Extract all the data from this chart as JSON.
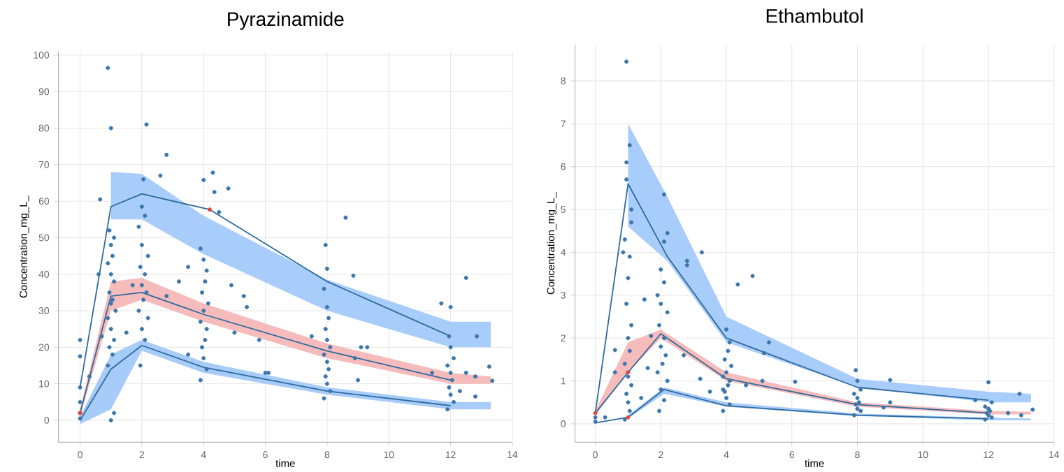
{
  "chart_data": [
    {
      "type": "scatter",
      "title": "Pyrazinamide",
      "xlabel": "time",
      "ylabel": "Concentration_mg_L_",
      "xlim": [
        -0.7,
        14
      ],
      "ylim": [
        -6,
        101
      ],
      "xticks": [
        0,
        2,
        4,
        6,
        8,
        10,
        12,
        14
      ],
      "yticks": [
        0,
        10,
        20,
        30,
        40,
        50,
        60,
        70,
        80,
        90,
        100
      ],
      "grid": true,
      "marker": "circle",
      "series": [
        {
          "type": "area",
          "color": "#a9cdfb",
          "x": [
            1,
            2,
            4,
            8,
            12,
            13.3
          ],
          "values": [
            null,
            null,
            null,
            null,
            null,
            null
          ],
          "lower": [
            55,
            55,
            45.5,
            30,
            20,
            20
          ],
          "upper": [
            68,
            67.5,
            56,
            38.5,
            27,
            27
          ]
        },
        {
          "type": "area",
          "color": "#f6bcbc",
          "x": [
            0,
            1,
            2,
            4,
            8,
            12,
            13.3
          ],
          "values": [
            null,
            null,
            null,
            null,
            null,
            null,
            null
          ],
          "lower": [
            1,
            30,
            33,
            27,
            17,
            10,
            10
          ],
          "upper": [
            3,
            38,
            39,
            32,
            21,
            13,
            12
          ]
        },
        {
          "type": "area",
          "color": "#a8ccfa",
          "x": [
            0,
            1,
            2,
            4,
            8,
            12,
            13.3
          ],
          "values": [
            null,
            null,
            null,
            null,
            null,
            null,
            null
          ],
          "lower": [
            -1,
            3,
            19,
            13,
            7,
            3,
            3
          ],
          "upper": [
            1,
            18,
            22,
            16,
            9,
            5,
            5
          ]
        },
        {
          "color": "#3b76ab",
          "x": [
            0.9,
            1,
            2.15,
            2.8,
            2.6,
            2.05,
            4,
            4.3,
            4.35,
            4.8,
            4.5,
            0.65,
            0.95,
            8.6,
            7.95,
            8,
            8.85,
            12.5,
            11.7,
            12,
            12.85,
            13.25,
            13.35,
            12.8,
            1,
            1.1,
            0,
            0,
            0,
            0,
            0,
            0,
            0.9,
            1.05,
            0.95,
            1.1,
            1.0,
            0.9,
            1.15,
            1.0,
            1.05,
            0.95,
            1.1,
            1.0,
            0.9,
            1.05,
            1.0,
            1.1,
            1.95,
            2.1,
            2.0,
            2.2,
            1.9,
            2.05,
            2.15,
            2.0,
            2.1,
            1.95,
            2.2,
            2.0,
            1.9,
            2.1,
            2.0,
            3.9,
            4.1,
            4.0,
            3.95,
            4.05,
            4.1,
            3.9,
            4.0,
            4.15,
            3.95,
            4.05,
            4.1,
            4.0,
            3.9,
            7.9,
            8.1,
            8.0,
            7.95,
            8.05,
            8.0,
            7.9,
            8.1,
            8.0,
            7.95,
            8.05,
            8.0,
            7.9,
            11.9,
            12.1,
            12.0,
            11.95,
            12.05,
            12.0,
            11.9,
            12.1,
            12.0,
            11.95,
            0.6,
            0.7,
            0.3,
            1.5,
            1.7,
            2.8,
            3.2,
            3.5,
            3.5,
            4.9,
            5,
            5.3,
            5.4,
            5.8,
            6,
            6.1,
            7.5,
            8.9,
            9.1,
            9.3,
            9,
            11.4,
            12.3,
            12.8,
            12.5
          ],
          "values": [
            96.5,
            80,
            81,
            72.7,
            67,
            66,
            65.8,
            67.8,
            62.5,
            63.5,
            57,
            60.5,
            52,
            55.5,
            48,
            41.5,
            39.6,
            39,
            32,
            31,
            23,
            14.7,
            10.8,
            6.5,
            0,
            2,
            22,
            17.5,
            9,
            5,
            2,
            0.5,
            15,
            18,
            20,
            22,
            25,
            28,
            30,
            32,
            33,
            35,
            38,
            40,
            43,
            45,
            48,
            50,
            15,
            22,
            25,
            28,
            30,
            33,
            35,
            37,
            40,
            42,
            45,
            48,
            53,
            56,
            58.5,
            11,
            14,
            17,
            20,
            22,
            25,
            27,
            30,
            32,
            35,
            38,
            41,
            44,
            47,
            6,
            8,
            10,
            12,
            14,
            16,
            18,
            20,
            22,
            25,
            28,
            31,
            36,
            3,
            5,
            7,
            9,
            11,
            13,
            15,
            17,
            20,
            23,
            40,
            23,
            12,
            24,
            37,
            34,
            38,
            18,
            42,
            37,
            24,
            34,
            31,
            22,
            13,
            13,
            23,
            17,
            20,
            20,
            11,
            13,
            8,
            12,
            13
          ]
        },
        {
          "type": "line",
          "color": "#2f6a9c",
          "marker": "none",
          "x": [
            0,
            1,
            2,
            4.2,
            8,
            12
          ],
          "values": [
            9,
            58.5,
            62,
            57.7,
            38,
            23
          ]
        },
        {
          "type": "line",
          "color": "#2f6a9c",
          "marker": "none",
          "x": [
            0,
            1,
            2,
            4,
            8,
            12
          ],
          "values": [
            2,
            34,
            35,
            29,
            19,
            11
          ]
        },
        {
          "type": "line",
          "color": "#2f6a9c",
          "marker": "none",
          "x": [
            0,
            1,
            2,
            4,
            8,
            12
          ],
          "values": [
            0,
            14,
            20.5,
            14.5,
            8,
            4
          ]
        },
        {
          "color": "#e8443a",
          "x": [
            0,
            4.2
          ],
          "values": [
            2,
            57.7
          ]
        }
      ]
    },
    {
      "type": "scatter",
      "title": "Ethambutol",
      "xlabel": "time",
      "ylabel": "Concentration_mg_L_",
      "xlim": [
        -0.62,
        14
      ],
      "ylim": [
        -0.43,
        8.85
      ],
      "xticks": [
        0,
        2,
        4,
        6,
        8,
        10,
        12,
        14
      ],
      "yticks": [
        0,
        1,
        2,
        3,
        4,
        5,
        6,
        7,
        8
      ],
      "grid": true,
      "marker": "circle",
      "series": [
        {
          "type": "area",
          "color": "#a9cdfb",
          "x": [
            1,
            2.2,
            4,
            8,
            12,
            13.3
          ],
          "values": [
            null,
            null,
            null,
            null,
            null,
            null
          ],
          "lower": [
            4.6,
            3.8,
            1.9,
            0.85,
            0.5,
            0.5
          ],
          "upper": [
            7.0,
            5.3,
            2.5,
            1.05,
            0.75,
            0.7
          ]
        },
        {
          "type": "area",
          "color": "#f6bcbc",
          "x": [
            0,
            1,
            2,
            4,
            8,
            12,
            13.3
          ],
          "values": [
            null,
            null,
            null,
            null,
            null,
            null,
            null
          ],
          "lower": [
            0.2,
            1.2,
            2.0,
            1.0,
            0.4,
            0.22,
            0.22
          ],
          "upper": [
            0.3,
            1.9,
            2.2,
            1.2,
            0.5,
            0.3,
            0.28
          ]
        },
        {
          "type": "area",
          "color": "#a8ccfa",
          "x": [
            1,
            2.1,
            4,
            8,
            12,
            13.3
          ],
          "values": [
            null,
            null,
            null,
            null,
            null,
            null
          ],
          "lower": [
            0.12,
            0.7,
            0.4,
            0.18,
            0.08,
            0.08
          ],
          "upper": [
            0.2,
            0.85,
            0.5,
            0.24,
            0.14,
            0.12
          ]
        },
        {
          "color": "#3b76ab",
          "x": [
            0.95,
            1.05,
            0.95,
            0.95,
            1.1,
            2.1,
            2.1,
            2.2,
            3.25,
            2.8,
            2.8,
            4.35,
            4.8,
            5.3,
            5.15,
            6.1,
            9,
            12,
            12.95,
            13.35,
            0.6,
            0.6,
            0,
            0,
            0.3,
            0.9,
            1.05,
            1.0,
            0.95,
            1.1,
            1.0,
            0.9,
            1.05,
            1.0,
            1.1,
            0.95,
            1.0,
            1.05,
            0.9,
            1.1,
            0.85,
            1.95,
            2.1,
            2.0,
            2.2,
            1.9,
            2.05,
            2.15,
            2.0,
            2.1,
            1.95,
            2.2,
            2.0,
            1.9,
            2.1,
            2.0,
            3.9,
            4.1,
            4.0,
            3.95,
            4.05,
            4.1,
            3.9,
            4.0,
            4.15,
            3.95,
            4.05,
            4.1,
            4.0,
            7.9,
            8.1,
            8.0,
            7.95,
            8.05,
            8.0,
            7.9,
            8.1,
            8.0,
            7.95,
            11.9,
            12.1,
            12.0,
            11.95,
            12.05,
            12.0,
            11.9,
            12.1,
            1.5,
            1.7,
            1.6,
            1.4,
            2.7,
            3.2,
            3.5,
            3.9,
            4.6,
            5.1,
            8.8,
            9,
            11.6,
            12.6,
            13
          ],
          "values": [
            8.45,
            6.5,
            6.1,
            5.7,
            5,
            5.35,
            4.25,
            4.45,
            4,
            3.8,
            3.7,
            3.25,
            3.45,
            1.9,
            1.65,
            0.98,
            1.02,
            0.97,
            0.7,
            0.33,
            1.72,
            1.2,
            0.05,
            0.15,
            0.15,
            0.1,
            0.3,
            0.5,
            0.7,
            0.9,
            1.1,
            1.4,
            1.7,
            2.0,
            2.3,
            2.8,
            3.4,
            3.9,
            4.3,
            4.7,
            4.0,
            0.3,
            0.55,
            0.8,
            1.0,
            1.2,
            1.4,
            1.6,
            1.8,
            2.0,
            2.3,
            2.6,
            2.8,
            3.0,
            3.3,
            3.6,
            0.3,
            0.45,
            0.6,
            0.75,
            0.9,
            1.0,
            1.1,
            1.2,
            1.35,
            1.5,
            1.7,
            1.9,
            2.2,
            0.2,
            0.3,
            0.35,
            0.45,
            0.5,
            0.6,
            0.7,
            0.8,
            1.0,
            1.25,
            0.1,
            0.15,
            0.2,
            0.25,
            0.3,
            0.35,
            0.4,
            0.5,
            2.9,
            2.05,
            1.3,
            0.6,
            1.6,
            1.05,
            0.75,
            0.8,
            0.9,
            1.0,
            0.38,
            0.5,
            0.55,
            0.25,
            0.2
          ]
        },
        {
          "type": "line",
          "color": "#2f6a9c",
          "marker": "none",
          "x": [
            0,
            1,
            2.2,
            4,
            8,
            12
          ],
          "values": [
            0.25,
            5.6,
            3.9,
            2.0,
            0.85,
            0.55
          ]
        },
        {
          "type": "line",
          "color": "#2f6a9c",
          "marker": "none",
          "x": [
            0,
            1,
            2,
            4,
            8,
            12
          ],
          "values": [
            0.25,
            1.2,
            2.1,
            1.05,
            0.45,
            0.25
          ]
        },
        {
          "type": "line",
          "color": "#2f6a9c",
          "marker": "none",
          "x": [
            0,
            1,
            2.1,
            4,
            8,
            12
          ],
          "values": [
            0.02,
            0.15,
            0.8,
            0.42,
            0.2,
            0.12
          ]
        },
        {
          "color": "#e8443a",
          "x": [
            0,
            1,
            1
          ],
          "values": [
            0.25,
            1.2,
            0.15
          ]
        }
      ]
    }
  ]
}
